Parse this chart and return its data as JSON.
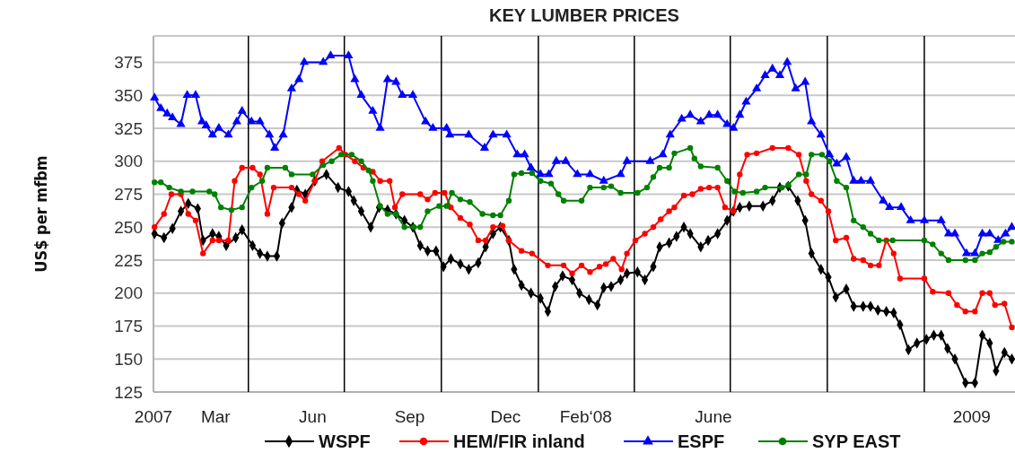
{
  "chart_data": {
    "type": "line",
    "title": "KEY LUMBER PRICES",
    "ylabel": "US$ per mfbm",
    "xlim": [
      "2007-01-01",
      "2009-03-28"
    ],
    "ylim": [
      125,
      395
    ],
    "yticks": [
      125,
      150,
      175,
      200,
      225,
      250,
      275,
      300,
      325,
      350,
      375
    ],
    "xticks": [
      {
        "value": "2007-01-01",
        "label": "2007"
      },
      {
        "value": "2007-03-01",
        "label": "Mar"
      },
      {
        "value": "2007-06-01",
        "label": "Jun"
      },
      {
        "value": "2007-09-01",
        "label": "Sep"
      },
      {
        "value": "2007-12-01",
        "label": "Dec"
      },
      {
        "value": "2008-02-15",
        "label": "Feb‘08"
      },
      {
        "value": "2008-06-15",
        "label": "June"
      },
      {
        "value": "2009-02-15",
        "label": "2009"
      }
    ],
    "grid": "y",
    "legend": "bottom",
    "ref_lines": [
      {
        "axis": "x",
        "value": "2007-04-01",
        "color": "#000000"
      },
      {
        "axis": "x",
        "value": "2007-07-01",
        "color": "#000000"
      },
      {
        "axis": "x",
        "value": "2007-10-01",
        "color": "#000000"
      },
      {
        "axis": "x",
        "value": "2008-01-01",
        "color": "#000000"
      },
      {
        "axis": "x",
        "value": "2008-04-01",
        "color": "#000000"
      },
      {
        "axis": "x",
        "value": "2008-07-01",
        "color": "#000000"
      },
      {
        "axis": "x",
        "value": "2008-10-01",
        "color": "#000000"
      },
      {
        "axis": "x",
        "value": "2009-01-01",
        "color": "#000000"
      }
    ],
    "series": [
      {
        "name": "WSPF",
        "color": "#000000",
        "marker": "diamond",
        "x": [
          "2007-01-02",
          "2007-01-11",
          "2007-01-19",
          "2007-01-27",
          "2007-02-03",
          "2007-02-12",
          "2007-02-17",
          "2007-02-26",
          "2007-03-04",
          "2007-03-11",
          "2007-03-20",
          "2007-03-26",
          "2007-04-05",
          "2007-04-12",
          "2007-04-19",
          "2007-04-28",
          "2007-05-03",
          "2007-05-12",
          "2007-05-17",
          "2007-05-25",
          "2007-06-03",
          "2007-06-14",
          "2007-06-25",
          "2007-07-05",
          "2007-07-10",
          "2007-07-17",
          "2007-07-26",
          "2007-08-03",
          "2007-08-11",
          "2007-08-19",
          "2007-08-27",
          "2007-09-04",
          "2007-09-11",
          "2007-09-18",
          "2007-09-26",
          "2007-10-03",
          "2007-10-10",
          "2007-10-19",
          "2007-10-27",
          "2007-11-05",
          "2007-11-12",
          "2007-11-19",
          "2007-11-26",
          "2007-12-04",
          "2007-12-09",
          "2007-12-16",
          "2007-12-25",
          "2008-01-03",
          "2008-01-10",
          "2008-01-17",
          "2008-01-24",
          "2008-02-02",
          "2008-02-09",
          "2008-02-18",
          "2008-02-26",
          "2008-03-03",
          "2008-03-10",
          "2008-03-19",
          "2008-03-25",
          "2008-04-04",
          "2008-04-11",
          "2008-04-19",
          "2008-04-25",
          "2008-05-04",
          "2008-05-11",
          "2008-05-18",
          "2008-05-24",
          "2008-06-03",
          "2008-06-10",
          "2008-06-19",
          "2008-06-28",
          "2008-07-04",
          "2008-07-10",
          "2008-07-19",
          "2008-08-01",
          "2008-08-10",
          "2008-08-17",
          "2008-08-25",
          "2008-09-03",
          "2008-09-10",
          "2008-09-16",
          "2008-09-25",
          "2008-10-02",
          "2008-10-09",
          "2008-10-19",
          "2008-10-26",
          "2008-11-04",
          "2008-11-11",
          "2008-11-18",
          "2008-11-26",
          "2008-12-03",
          "2008-12-09",
          "2008-12-17",
          "2008-12-25",
          "2009-01-03",
          "2009-01-10",
          "2009-01-17",
          "2009-01-23",
          "2009-01-30",
          "2009-02-09",
          "2009-02-18",
          "2009-02-25",
          "2009-03-04",
          "2009-03-10",
          "2009-03-18",
          "2009-03-25"
        ],
        "values": [
          245,
          242,
          249,
          262,
          268,
          264,
          240,
          245,
          243,
          236,
          242,
          248,
          236,
          230,
          228,
          228,
          253,
          265,
          278,
          275,
          285,
          290,
          280,
          277,
          270,
          262,
          250,
          265,
          263,
          260,
          255,
          250,
          236,
          232,
          232,
          220,
          226,
          222,
          218,
          223,
          235,
          245,
          250,
          240,
          218,
          206,
          200,
          196,
          186,
          205,
          213,
          210,
          200,
          195,
          191,
          204,
          205,
          210,
          215,
          216,
          210,
          220,
          235,
          238,
          243,
          250,
          245,
          235,
          240,
          245,
          255,
          262,
          265,
          266,
          266,
          270,
          280,
          281,
          270,
          255,
          230,
          218,
          212,
          197,
          203,
          190,
          190,
          190,
          187,
          186,
          185,
          176,
          157,
          162,
          165,
          168,
          168,
          158,
          150,
          132,
          132,
          168,
          162,
          141,
          155,
          150
        ]
      },
      {
        "name": "HEM/FIR inland",
        "color": "#ff0000",
        "marker": "circle",
        "x": [
          "2007-01-02",
          "2007-01-11",
          "2007-01-18",
          "2007-01-27",
          "2007-02-03",
          "2007-02-10",
          "2007-02-17",
          "2007-02-26",
          "2007-03-04",
          "2007-03-13",
          "2007-03-19",
          "2007-03-26",
          "2007-04-05",
          "2007-04-12",
          "2007-04-19",
          "2007-04-25",
          "2007-05-12",
          "2007-05-19",
          "2007-05-25",
          "2007-06-03",
          "2007-06-10",
          "2007-06-26",
          "2007-07-02",
          "2007-07-11",
          "2007-07-19",
          "2007-07-28",
          "2007-08-04",
          "2007-08-13",
          "2007-08-18",
          "2007-08-25",
          "2007-09-11",
          "2007-09-18",
          "2007-09-25",
          "2007-10-04",
          "2007-10-10",
          "2007-10-19",
          "2007-10-28",
          "2007-11-05",
          "2007-11-12",
          "2007-11-19",
          "2007-11-28",
          "2007-12-04",
          "2007-12-16",
          "2007-12-26",
          "2008-01-10",
          "2008-01-25",
          "2008-02-02",
          "2008-02-11",
          "2008-02-19",
          "2008-02-28",
          "2008-03-05",
          "2008-03-12",
          "2008-03-20",
          "2008-03-25",
          "2008-04-02",
          "2008-04-11",
          "2008-04-19",
          "2008-04-26",
          "2008-05-04",
          "2008-05-09",
          "2008-05-18",
          "2008-05-26",
          "2008-06-03",
          "2008-06-11",
          "2008-06-19",
          "2008-06-26",
          "2008-07-04",
          "2008-07-10",
          "2008-07-17",
          "2008-07-26",
          "2008-08-10",
          "2008-08-25",
          "2008-09-04",
          "2008-09-11",
          "2008-09-16",
          "2008-09-25",
          "2008-10-02",
          "2008-10-09",
          "2008-10-19",
          "2008-10-26",
          "2008-11-04",
          "2008-11-11",
          "2008-11-19",
          "2008-11-26",
          "2008-12-03",
          "2008-12-09",
          "2009-01-01",
          "2009-01-09",
          "2009-01-24",
          "2009-02-01",
          "2009-02-09",
          "2009-02-18",
          "2009-02-25",
          "2009-03-04",
          "2009-03-09",
          "2009-03-18",
          "2009-03-25"
        ],
        "values": [
          250,
          260,
          275,
          275,
          260,
          255,
          230,
          240,
          240,
          240,
          285,
          295,
          295,
          290,
          260,
          280,
          280,
          275,
          270,
          285,
          300,
          310,
          305,
          300,
          295,
          292,
          285,
          285,
          265,
          275,
          275,
          271,
          276,
          276,
          265,
          257,
          252,
          240,
          240,
          250,
          251,
          240,
          232,
          230,
          221,
          221,
          215,
          221,
          216,
          220,
          222,
          226,
          218,
          230,
          240,
          245,
          250,
          256,
          262,
          265,
          274,
          275,
          279,
          280,
          280,
          265,
          262,
          290,
          305,
          306,
          310,
          310,
          305,
          285,
          275,
          270,
          262,
          240,
          242,
          226,
          225,
          221,
          221,
          240,
          230,
          211,
          211,
          201,
          200,
          191,
          186,
          186,
          200,
          200,
          191,
          192,
          174
        ]
      },
      {
        "name": "ESPF",
        "color": "#0000ff",
        "marker": "triangle",
        "x": [
          "2007-01-02",
          "2007-01-08",
          "2007-01-14",
          "2007-01-19",
          "2007-01-27",
          "2007-02-02",
          "2007-02-10",
          "2007-02-16",
          "2007-02-20",
          "2007-02-26",
          "2007-03-04",
          "2007-03-13",
          "2007-03-21",
          "2007-03-26",
          "2007-04-04",
          "2007-04-12",
          "2007-04-21",
          "2007-04-26",
          "2007-05-04",
          "2007-05-12",
          "2007-05-19",
          "2007-05-24",
          "2007-06-11",
          "2007-06-18",
          "2007-07-05",
          "2007-07-11",
          "2007-07-17",
          "2007-07-28",
          "2007-08-04",
          "2007-08-11",
          "2007-08-19",
          "2007-08-25",
          "2007-09-04",
          "2007-09-16",
          "2007-09-23",
          "2007-10-06",
          "2007-10-09",
          "2007-10-27",
          "2007-11-11",
          "2007-11-19",
          "2007-12-02",
          "2007-12-12",
          "2007-12-19",
          "2007-12-25",
          "2008-01-03",
          "2008-01-11",
          "2008-01-18",
          "2008-01-27",
          "2008-02-07",
          "2008-02-19",
          "2008-03-03",
          "2008-03-19",
          "2008-03-25",
          "2008-04-16",
          "2008-04-28",
          "2008-05-05",
          "2008-05-16",
          "2008-05-24",
          "2008-06-03",
          "2008-06-11",
          "2008-06-19",
          "2008-06-28",
          "2008-07-04",
          "2008-07-10",
          "2008-07-16",
          "2008-07-26",
          "2008-08-03",
          "2008-08-10",
          "2008-08-17",
          "2008-08-24",
          "2008-09-01",
          "2008-09-10",
          "2008-09-16",
          "2008-09-25",
          "2008-10-03",
          "2008-10-10",
          "2008-10-19",
          "2008-10-26",
          "2008-11-02",
          "2008-11-11",
          "2008-11-23",
          "2008-11-29",
          "2008-12-10",
          "2008-12-19",
          "2009-01-01",
          "2009-01-17",
          "2009-01-24",
          "2009-01-30",
          "2009-02-10",
          "2009-02-18",
          "2009-02-25",
          "2009-03-04",
          "2009-03-12",
          "2009-03-19",
          "2009-03-25"
        ],
        "values": [
          348,
          340,
          336,
          333,
          328,
          350,
          350,
          330,
          327,
          320,
          325,
          320,
          330,
          338,
          330,
          330,
          320,
          310,
          320,
          355,
          362,
          375,
          375,
          380,
          380,
          362,
          350,
          338,
          325,
          362,
          360,
          350,
          350,
          330,
          325,
          325,
          320,
          320,
          310,
          320,
          320,
          305,
          305,
          295,
          290,
          290,
          300,
          300,
          290,
          290,
          285,
          290,
          300,
          300,
          305,
          320,
          332,
          335,
          330,
          335,
          335,
          328,
          325,
          335,
          345,
          355,
          365,
          370,
          365,
          375,
          355,
          360,
          330,
          320,
          305,
          298,
          303,
          285,
          285,
          285,
          270,
          265,
          265,
          255,
          255,
          255,
          245,
          245,
          230,
          230,
          245,
          245,
          240,
          245,
          250
        ]
      },
      {
        "name": "SYP EAST",
        "color": "#008000",
        "marker": "circle",
        "x": [
          "2007-01-02",
          "2007-01-08",
          "2007-01-16",
          "2007-01-27",
          "2007-02-07",
          "2007-02-23",
          "2007-02-28",
          "2007-03-06",
          "2007-03-16",
          "2007-03-26",
          "2007-04-04",
          "2007-04-14",
          "2007-04-19",
          "2007-05-06",
          "2007-05-12",
          "2007-06-01",
          "2007-06-11",
          "2007-06-19",
          "2007-06-28",
          "2007-07-08",
          "2007-07-17",
          "2007-07-24",
          "2007-07-28",
          "2007-08-04",
          "2007-08-11",
          "2007-08-19",
          "2007-08-27",
          "2007-09-05",
          "2007-09-11",
          "2007-09-18",
          "2007-09-29",
          "2007-10-06",
          "2007-10-11",
          "2007-10-19",
          "2007-10-28",
          "2007-11-09",
          "2007-11-19",
          "2007-11-26",
          "2007-12-04",
          "2007-12-09",
          "2007-12-16",
          "2007-12-26",
          "2008-01-03",
          "2008-01-13",
          "2008-01-20",
          "2008-01-25",
          "2008-02-11",
          "2008-02-19",
          "2008-03-03",
          "2008-03-10",
          "2008-03-19",
          "2008-04-04",
          "2008-04-13",
          "2008-04-19",
          "2008-04-25",
          "2008-05-04",
          "2008-05-09",
          "2008-05-24",
          "2008-05-28",
          "2008-06-03",
          "2008-06-19",
          "2008-06-28",
          "2008-07-05",
          "2008-07-13",
          "2008-07-26",
          "2008-08-03",
          "2008-08-19",
          "2008-08-25",
          "2008-09-04",
          "2008-09-11",
          "2008-09-16",
          "2008-09-26",
          "2008-10-03",
          "2008-10-10",
          "2008-10-19",
          "2008-10-26",
          "2008-11-04",
          "2008-11-11",
          "2008-11-19",
          "2008-12-02",
          "2009-01-01",
          "2009-01-09",
          "2009-01-17",
          "2009-01-24",
          "2009-02-09",
          "2009-02-18",
          "2009-02-25",
          "2009-03-04",
          "2009-03-10",
          "2009-03-17",
          "2009-03-25"
        ],
        "values": [
          284,
          284,
          280,
          277,
          277,
          277,
          275,
          265,
          263,
          265,
          280,
          285,
          295,
          295,
          290,
          290,
          297,
          300,
          305,
          305,
          300,
          293,
          285,
          266,
          260,
          260,
          250,
          250,
          250,
          262,
          266,
          266,
          276,
          271,
          269,
          260,
          259,
          259,
          270,
          290,
          291,
          291,
          285,
          283,
          275,
          270,
          270,
          280,
          280,
          281,
          276,
          276,
          280,
          288,
          295,
          295,
          306,
          310,
          302,
          296,
          295,
          285,
          277,
          276,
          277,
          280,
          280,
          282,
          290,
          290,
          305,
          305,
          300,
          285,
          280,
          255,
          250,
          245,
          240,
          240,
          240,
          237,
          230,
          225,
          225,
          225,
          230,
          231,
          235,
          239,
          239
        ]
      }
    ]
  }
}
